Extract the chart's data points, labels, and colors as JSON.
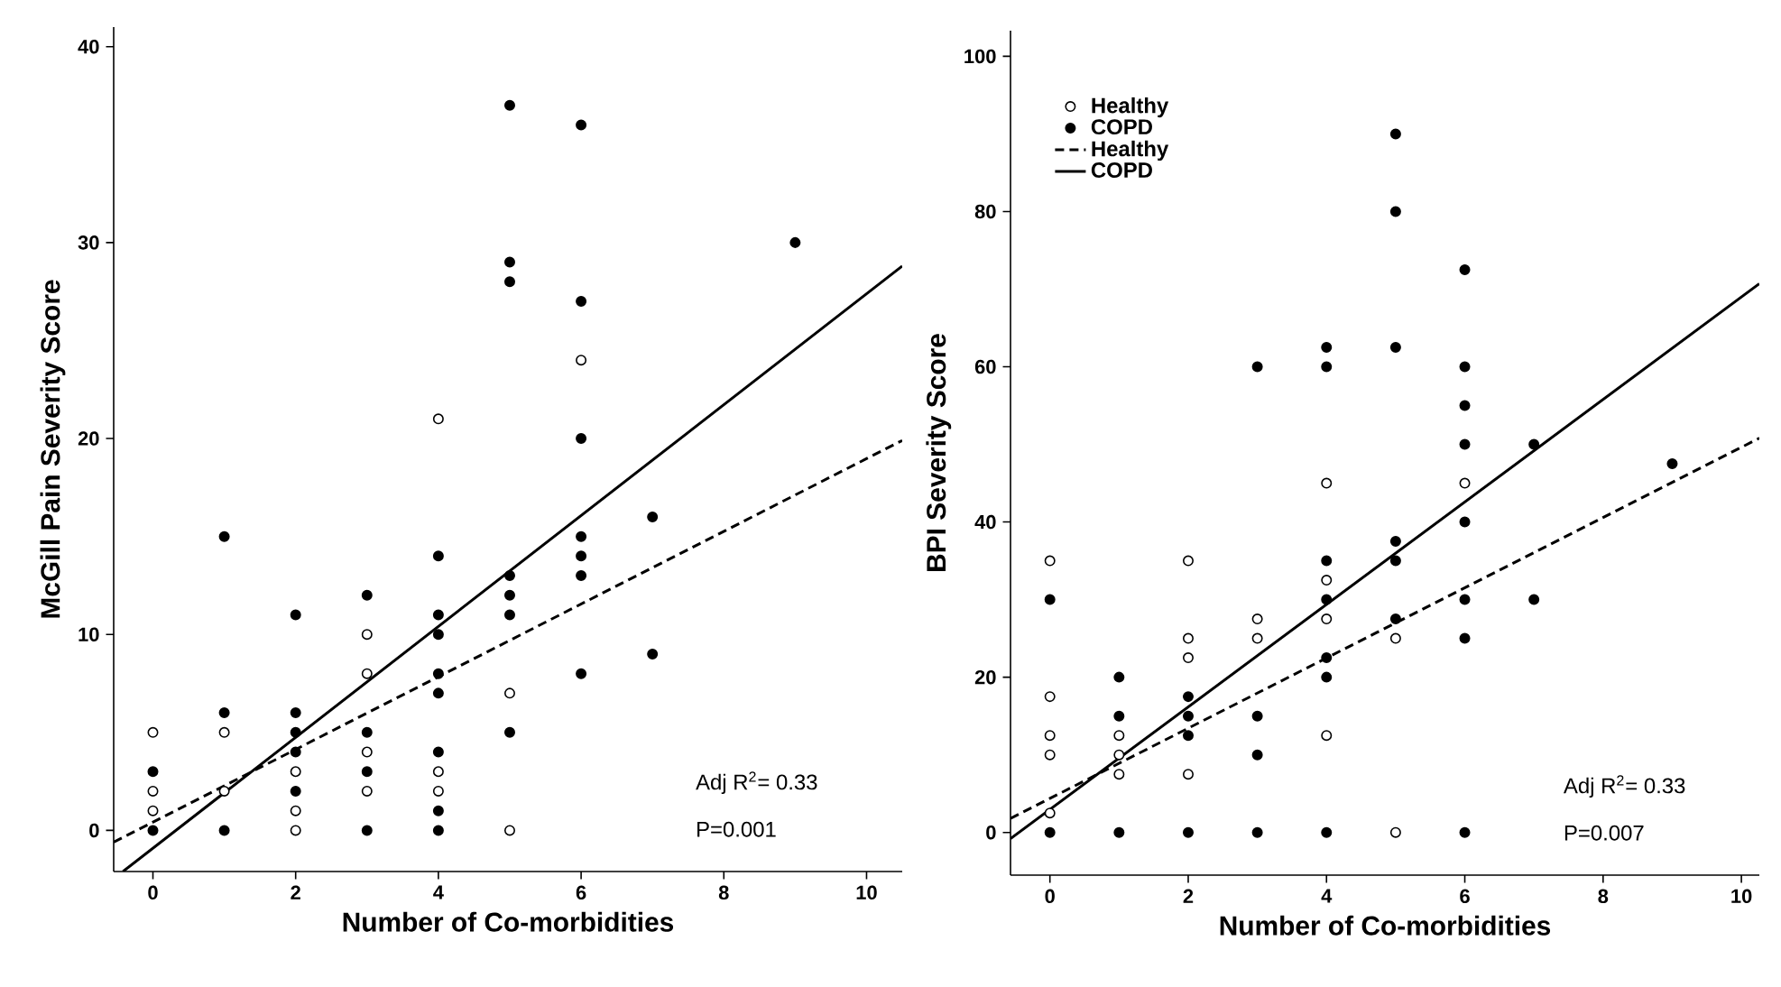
{
  "chart_data": [
    {
      "type": "scatter",
      "xlabel": "Number of Co-morbidities",
      "ylabel": "McGill Pain Severity Score",
      "xlim": [
        -0.55,
        10.5
      ],
      "ylim": [
        -2.1,
        41
      ],
      "xticks": [
        0,
        2,
        4,
        6,
        8,
        10
      ],
      "yticks": [
        0,
        10,
        20,
        30,
        40
      ],
      "grid": false,
      "legend": false,
      "annotations": [
        "Adj R$^{2}$= 0.33",
        "P=0.001"
      ],
      "series": [
        {
          "marker": "circle",
          "color": "#ffffff",
          "x": [
            0,
            0,
            0,
            1,
            1,
            2,
            2,
            2,
            3,
            3,
            3,
            3,
            4,
            4,
            4,
            5,
            5,
            6
          ],
          "values": [
            5,
            2,
            1,
            5,
            2,
            3,
            1,
            0,
            10,
            8,
            4,
            2,
            21,
            3,
            2,
            7,
            0,
            24
          ]
        },
        {
          "marker": "circle",
          "color": "#000000",
          "x": [
            0,
            0,
            1,
            1,
            1,
            2,
            2,
            2,
            2,
            2,
            3,
            3,
            3,
            3,
            4,
            4,
            4,
            4,
            4,
            4,
            4,
            4,
            5,
            5,
            5,
            5,
            5,
            5,
            5,
            6,
            6,
            6,
            6,
            6,
            6,
            6,
            7,
            7,
            9
          ],
          "values": [
            3,
            0,
            15,
            6,
            0,
            11,
            6,
            5,
            4,
            2,
            12,
            5,
            3,
            0,
            14,
            11,
            10,
            8,
            7,
            4,
            1,
            0,
            37,
            29,
            28,
            13,
            12,
            11,
            5,
            36,
            27,
            20,
            15,
            14,
            13,
            8,
            16,
            9,
            30
          ]
        },
        {
          "type": "line",
          "marker": "none",
          "line_style": "dashed",
          "color": "#000000",
          "x": [
            -0.55,
            10.5
          ],
          "values": [
            -0.6,
            19.9
          ]
        },
        {
          "type": "line",
          "marker": "none",
          "line_style": "solid",
          "color": "#000000",
          "x": [
            -0.42,
            10.5
          ],
          "values": [
            -2.1,
            28.8
          ]
        }
      ]
    },
    {
      "type": "scatter",
      "xlabel": "Number of Co-morbidities",
      "ylabel": "BPI Severity Score",
      "xlim": [
        -0.57,
        10.26
      ],
      "ylim": [
        -5.5,
        103.3
      ],
      "xticks": [
        0,
        2,
        4,
        6,
        8,
        10
      ],
      "yticks": [
        0,
        20,
        40,
        60,
        80,
        100
      ],
      "grid": false,
      "legend": "top left",
      "annotations": [
        "Adj R$^{2}$= 0.33",
        "P=0.007"
      ],
      "series": [
        {
          "name": "Healthy",
          "marker": "circle",
          "color": "#ffffff",
          "x": [
            0,
            0,
            0,
            0,
            0,
            1,
            1,
            1,
            2,
            2,
            2,
            2,
            3,
            3,
            4,
            4,
            4,
            4,
            5,
            5,
            6
          ],
          "values": [
            35,
            17.5,
            12.5,
            10,
            2.5,
            12.5,
            10,
            7.5,
            35,
            25,
            22.5,
            7.5,
            27.5,
            25,
            45,
            32.5,
            27.5,
            12.5,
            25,
            0,
            45
          ]
        },
        {
          "name": "COPD",
          "marker": "circle",
          "color": "#000000",
          "x": [
            0,
            0,
            1,
            1,
            1,
            2,
            2,
            2,
            2,
            3,
            3,
            3,
            3,
            4,
            4,
            4,
            4,
            4,
            4,
            4,
            5,
            5,
            5,
            5,
            5,
            5,
            6,
            6,
            6,
            6,
            6,
            6,
            6,
            6,
            7,
            7,
            9
          ],
          "values": [
            30,
            0,
            20,
            15,
            0,
            17.5,
            15,
            12.5,
            0,
            60,
            15,
            10,
            0,
            62.5,
            60,
            35,
            30,
            22.5,
            20,
            0,
            90,
            80,
            62.5,
            37.5,
            35,
            27.5,
            72.5,
            60,
            55,
            50,
            40,
            30,
            25,
            0,
            50,
            30,
            47.5
          ]
        },
        {
          "name": "Healthy",
          "type": "line",
          "marker": "none",
          "line_style": "dashed",
          "color": "#000000",
          "x": [
            -0.57,
            10.26
          ],
          "values": [
            1.8,
            50.8
          ]
        },
        {
          "name": "COPD",
          "type": "line",
          "marker": "none",
          "line_style": "solid",
          "color": "#000000",
          "x": [
            -0.57,
            10.26
          ],
          "values": [
            -0.8,
            70.7
          ]
        }
      ]
    }
  ]
}
